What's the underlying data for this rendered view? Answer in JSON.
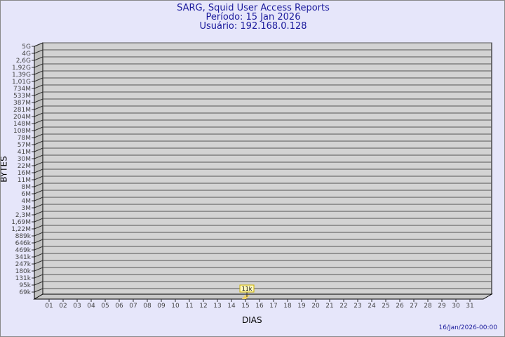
{
  "chart_data": {
    "type": "bar",
    "title": "SARG, Squid User Access Reports",
    "subtitle": [
      "Período: 15 Jan 2026",
      "Usuário: 192.168.0.128"
    ],
    "xlabel": "DIAS",
    "ylabel": "BYTES",
    "scale": "log",
    "y_ticks": [
      "5G",
      "4G",
      "2,6G",
      "1,92G",
      "1,39G",
      "1,01G",
      "734M",
      "533M",
      "387M",
      "281M",
      "204M",
      "148M",
      "108M",
      "78M",
      "57M",
      "41M",
      "30M",
      "22M",
      "16M",
      "11M",
      "8M",
      "6M",
      "4M",
      "3M",
      "2,3M",
      "1,69M",
      "1,22M",
      "889k",
      "646k",
      "469k",
      "341k",
      "247k",
      "180k",
      "131k",
      "95k",
      "69k"
    ],
    "categories": [
      "01",
      "02",
      "03",
      "04",
      "05",
      "06",
      "07",
      "08",
      "09",
      "10",
      "11",
      "12",
      "13",
      "14",
      "15",
      "16",
      "17",
      "18",
      "19",
      "20",
      "21",
      "22",
      "23",
      "24",
      "25",
      "26",
      "27",
      "28",
      "29",
      "30",
      "31"
    ],
    "values": [
      {
        "day": "15",
        "value": 11000,
        "label": "11k"
      }
    ],
    "grid": true,
    "colors": {
      "background": "#e6e6fa",
      "plot": "#d3d3d3",
      "bar": "#f0d060",
      "title": "#1a1a9c"
    }
  },
  "footer": "16/Jan/2026-00:00"
}
